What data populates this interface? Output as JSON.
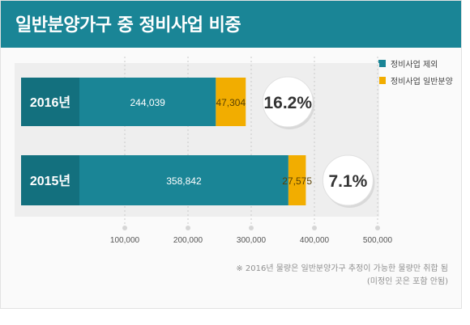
{
  "header": {
    "title": "일반분양가구 중 정비사업 비중"
  },
  "legend": {
    "items": [
      {
        "label": "정비사업 제외",
        "color": "#1a8596"
      },
      {
        "label": "정비사업 일반분양",
        "color": "#f2ad00"
      }
    ]
  },
  "footnote": {
    "line1": "※ 2016년 물량은 일반분양가구 추정이 가능한 물량만 취합 됨",
    "line2": "(미정인 곳은 포함 안됨)"
  },
  "chart_data": {
    "type": "bar",
    "orientation": "horizontal",
    "stacked": true,
    "categories": [
      "2016년",
      "2015년"
    ],
    "series": [
      {
        "name": "정비사업 제외",
        "values": [
          244039,
          358842
        ],
        "labels": [
          "244,039",
          "358,842"
        ],
        "color": "#1a8596"
      },
      {
        "name": "정비사업 일반분양",
        "values": [
          47304,
          27575
        ],
        "labels": [
          "47,304",
          "27,575"
        ],
        "color": "#f2ad00"
      }
    ],
    "shares": [
      "16.2%",
      "7.1%"
    ],
    "xlim": [
      0,
      500000
    ],
    "xticks": [
      100000,
      200000,
      300000,
      400000,
      500000
    ],
    "xtick_labels": [
      "100,000",
      "200,000",
      "300,000",
      "400,000",
      "500,000"
    ],
    "grid": "vertical dotted",
    "legend_position": "top-right"
  }
}
